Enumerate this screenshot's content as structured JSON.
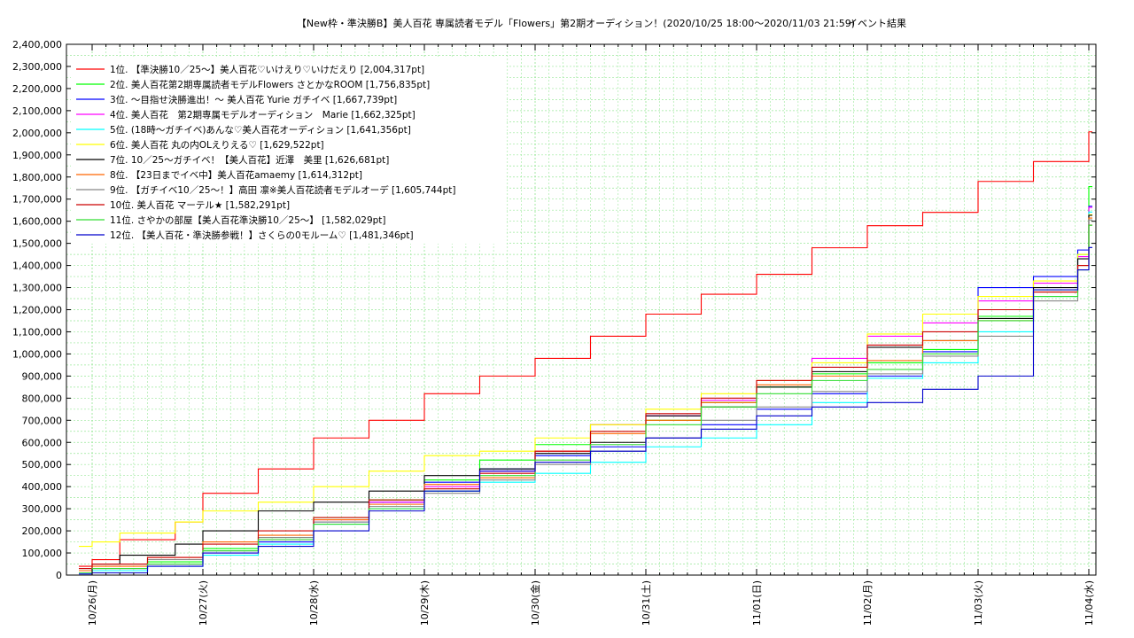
{
  "chart_data": {
    "type": "line",
    "title": "【New枠・準決勝B】美人百花 専属読者モデル「Flowers」第2期オーディション！(2020/10/25 18:00〜2020/11/03 21:59)",
    "subtitle": "イベント結果",
    "xlabel": "",
    "ylabel": "",
    "x_ticks": [
      "10/26(月)",
      "10/27(火)",
      "10/28(水)",
      "10/29(木)",
      "10/30(金)",
      "10/31(土)",
      "11/01(日)",
      "11/02(月)",
      "11/03(火)",
      "11/04(水)"
    ],
    "x_range": [
      0,
      9.25
    ],
    "ylim": [
      0,
      2400000
    ],
    "y_ticks": [
      "0",
      "100,000",
      "200,000",
      "300,000",
      "400,000",
      "500,000",
      "600,000",
      "700,000",
      "800,000",
      "900,000",
      "1,000,000",
      "1,100,000",
      "1,200,000",
      "1,300,000",
      "1,400,000",
      "1,500,000",
      "1,600,000",
      "1,700,000",
      "1,800,000",
      "1,900,000",
      "2,000,000",
      "2,100,000",
      "2,200,000",
      "2,300,000",
      "2,400,000"
    ],
    "grid": true,
    "legend_position": "top-left",
    "series": [
      {
        "name": "1位. 【準決勝10／25〜】美人百花♡いけえり♡いけだえり [2,004,317pt]",
        "color": "#ff0000",
        "step": true,
        "points": [
          [
            -0.12,
            40000
          ],
          [
            0,
            70000
          ],
          [
            0.25,
            160000
          ],
          [
            0.75,
            240000
          ],
          [
            1.0,
            370000
          ],
          [
            1.5,
            480000
          ],
          [
            2.0,
            620000
          ],
          [
            2.5,
            700000
          ],
          [
            3.0,
            820000
          ],
          [
            3.5,
            900000
          ],
          [
            4.0,
            980000
          ],
          [
            4.5,
            1080000
          ],
          [
            5.0,
            1180000
          ],
          [
            5.5,
            1270000
          ],
          [
            6.0,
            1360000
          ],
          [
            6.5,
            1480000
          ],
          [
            7.0,
            1580000
          ],
          [
            7.5,
            1640000
          ],
          [
            8.0,
            1780000
          ],
          [
            8.5,
            1870000
          ],
          [
            9.0,
            2004317
          ]
        ]
      },
      {
        "name": "2位. 美人百花第2期専属読者モデルFlowers さとかなROOM [1,756,835pt]",
        "color": "#00ff00",
        "step": true,
        "points": [
          [
            -0.12,
            20000
          ],
          [
            0,
            30000
          ],
          [
            0.5,
            60000
          ],
          [
            1.0,
            120000
          ],
          [
            1.5,
            170000
          ],
          [
            2.0,
            260000
          ],
          [
            2.5,
            340000
          ],
          [
            3.0,
            430000
          ],
          [
            3.5,
            520000
          ],
          [
            4.0,
            590000
          ],
          [
            4.5,
            680000
          ],
          [
            5.0,
            700000
          ],
          [
            5.5,
            780000
          ],
          [
            6.0,
            850000
          ],
          [
            6.5,
            910000
          ],
          [
            7.0,
            960000
          ],
          [
            7.5,
            1020000
          ],
          [
            8.0,
            1170000
          ],
          [
            8.5,
            1290000
          ],
          [
            8.9,
            1450000
          ],
          [
            9.0,
            1756835
          ]
        ]
      },
      {
        "name": "3位. 〜目指せ決勝進出！〜 美人百花 Yurie ガチイベ [1,667,739pt]",
        "color": "#0000ff",
        "step": true,
        "points": [
          [
            -0.12,
            5000
          ],
          [
            0,
            20000
          ],
          [
            0.5,
            50000
          ],
          [
            1.0,
            110000
          ],
          [
            1.5,
            150000
          ],
          [
            2.0,
            240000
          ],
          [
            2.5,
            330000
          ],
          [
            3.0,
            420000
          ],
          [
            3.5,
            480000
          ],
          [
            4.0,
            540000
          ],
          [
            4.5,
            580000
          ],
          [
            5.0,
            620000
          ],
          [
            5.5,
            680000
          ],
          [
            6.0,
            750000
          ],
          [
            6.5,
            820000
          ],
          [
            7.0,
            900000
          ],
          [
            7.5,
            1010000
          ],
          [
            8.0,
            1300000
          ],
          [
            8.5,
            1350000
          ],
          [
            8.9,
            1470000
          ],
          [
            9.0,
            1667739
          ]
        ]
      },
      {
        "name": "4位. 美人百花　第2期専属モデルオーディション　Marie [1,662,325pt]",
        "color": "#ff00ff",
        "step": true,
        "points": [
          [
            -0.12,
            10000
          ],
          [
            0,
            30000
          ],
          [
            0.5,
            50000
          ],
          [
            1.0,
            100000
          ],
          [
            1.5,
            160000
          ],
          [
            2.0,
            250000
          ],
          [
            2.5,
            330000
          ],
          [
            3.0,
            400000
          ],
          [
            3.5,
            470000
          ],
          [
            4.0,
            560000
          ],
          [
            4.5,
            680000
          ],
          [
            5.0,
            720000
          ],
          [
            5.5,
            790000
          ],
          [
            6.0,
            880000
          ],
          [
            6.5,
            980000
          ],
          [
            7.0,
            1080000
          ],
          [
            7.5,
            1140000
          ],
          [
            8.0,
            1240000
          ],
          [
            8.5,
            1320000
          ],
          [
            8.9,
            1440000
          ],
          [
            9.0,
            1662325
          ]
        ]
      },
      {
        "name": "5位. (18時〜ガチイベ)あんな♡美人百花オーディション [1,641,356pt]",
        "color": "#00ffff",
        "step": true,
        "points": [
          [
            -0.12,
            10000
          ],
          [
            0,
            20000
          ],
          [
            0.5,
            40000
          ],
          [
            1.0,
            90000
          ],
          [
            1.5,
            140000
          ],
          [
            2.0,
            230000
          ],
          [
            2.5,
            300000
          ],
          [
            3.0,
            380000
          ],
          [
            3.5,
            420000
          ],
          [
            4.0,
            460000
          ],
          [
            4.5,
            510000
          ],
          [
            5.0,
            580000
          ],
          [
            5.5,
            620000
          ],
          [
            6.0,
            680000
          ],
          [
            6.5,
            780000
          ],
          [
            7.0,
            890000
          ],
          [
            7.5,
            960000
          ],
          [
            8.0,
            1100000
          ],
          [
            8.5,
            1260000
          ],
          [
            8.9,
            1450000
          ],
          [
            9.0,
            1641356
          ]
        ]
      },
      {
        "name": "6位. 美人百花 丸の内OLえりえる♡ [1,629,522pt]",
        "color": "#ffff00",
        "step": true,
        "points": [
          [
            -0.12,
            130000
          ],
          [
            0,
            150000
          ],
          [
            0.25,
            190000
          ],
          [
            0.75,
            240000
          ],
          [
            1.0,
            290000
          ],
          [
            1.5,
            330000
          ],
          [
            2.0,
            400000
          ],
          [
            2.5,
            470000
          ],
          [
            3.0,
            540000
          ],
          [
            3.5,
            560000
          ],
          [
            4.0,
            620000
          ],
          [
            4.5,
            680000
          ],
          [
            5.0,
            750000
          ],
          [
            5.5,
            820000
          ],
          [
            6.0,
            880000
          ],
          [
            6.5,
            960000
          ],
          [
            7.0,
            1090000
          ],
          [
            7.5,
            1180000
          ],
          [
            8.0,
            1260000
          ],
          [
            8.5,
            1330000
          ],
          [
            8.9,
            1450000
          ],
          [
            9.0,
            1629522
          ]
        ]
      },
      {
        "name": "7位. 10／25〜ガチイベ！【美人百花】近澤　美里 [1,626,681pt]",
        "color": "#000000",
        "step": true,
        "points": [
          [
            -0.12,
            20000
          ],
          [
            0,
            50000
          ],
          [
            0.25,
            90000
          ],
          [
            0.75,
            140000
          ],
          [
            1.0,
            200000
          ],
          [
            1.5,
            290000
          ],
          [
            2.0,
            330000
          ],
          [
            2.5,
            380000
          ],
          [
            3.0,
            450000
          ],
          [
            3.5,
            480000
          ],
          [
            4.0,
            550000
          ],
          [
            4.5,
            600000
          ],
          [
            5.0,
            720000
          ],
          [
            5.5,
            760000
          ],
          [
            6.0,
            850000
          ],
          [
            6.5,
            920000
          ],
          [
            7.0,
            1030000
          ],
          [
            7.5,
            1060000
          ],
          [
            8.0,
            1160000
          ],
          [
            8.5,
            1300000
          ],
          [
            8.9,
            1430000
          ],
          [
            9.0,
            1626681
          ]
        ]
      },
      {
        "name": "8位. 【23日までイベ中】美人百花amaemy [1,614,312pt]",
        "color": "#ff6600",
        "step": true,
        "points": [
          [
            -0.12,
            20000
          ],
          [
            0,
            40000
          ],
          [
            0.5,
            80000
          ],
          [
            1.0,
            150000
          ],
          [
            1.5,
            180000
          ],
          [
            2.0,
            250000
          ],
          [
            2.5,
            320000
          ],
          [
            3.0,
            410000
          ],
          [
            3.5,
            440000
          ],
          [
            4.0,
            560000
          ],
          [
            4.5,
            640000
          ],
          [
            5.0,
            700000
          ],
          [
            5.5,
            780000
          ],
          [
            6.0,
            860000
          ],
          [
            6.5,
            900000
          ],
          [
            7.0,
            970000
          ],
          [
            7.5,
            1060000
          ],
          [
            8.0,
            1150000
          ],
          [
            8.5,
            1280000
          ],
          [
            8.9,
            1400000
          ],
          [
            9.0,
            1614312
          ]
        ]
      },
      {
        "name": "9位. 【ガチイベ10／25〜！】高田 凛※美人百花読者モデルオーデ [1,605,744pt]",
        "color": "#888888",
        "step": true,
        "points": [
          [
            -0.12,
            30000
          ],
          [
            0,
            50000
          ],
          [
            0.5,
            70000
          ],
          [
            1.0,
            110000
          ],
          [
            1.5,
            170000
          ],
          [
            2.0,
            240000
          ],
          [
            2.5,
            310000
          ],
          [
            3.0,
            370000
          ],
          [
            3.5,
            430000
          ],
          [
            4.0,
            500000
          ],
          [
            4.5,
            560000
          ],
          [
            5.0,
            620000
          ],
          [
            5.5,
            700000
          ],
          [
            6.0,
            760000
          ],
          [
            6.5,
            830000
          ],
          [
            7.0,
            910000
          ],
          [
            7.5,
            990000
          ],
          [
            8.0,
            1080000
          ],
          [
            8.5,
            1240000
          ],
          [
            8.9,
            1400000
          ],
          [
            9.0,
            1605744
          ]
        ]
      },
      {
        "name": "10位. 美人百花 マーテル★ [1,582,291pt]",
        "color": "#cc0000",
        "step": true,
        "points": [
          [
            -0.12,
            30000
          ],
          [
            0,
            50000
          ],
          [
            0.5,
            80000
          ],
          [
            1.0,
            140000
          ],
          [
            1.5,
            200000
          ],
          [
            2.0,
            260000
          ],
          [
            2.5,
            340000
          ],
          [
            3.0,
            390000
          ],
          [
            3.5,
            460000
          ],
          [
            4.0,
            560000
          ],
          [
            4.5,
            650000
          ],
          [
            5.0,
            730000
          ],
          [
            5.5,
            800000
          ],
          [
            6.0,
            880000
          ],
          [
            6.5,
            940000
          ],
          [
            7.0,
            1040000
          ],
          [
            7.5,
            1100000
          ],
          [
            8.0,
            1200000
          ],
          [
            8.5,
            1280000
          ],
          [
            8.9,
            1400000
          ],
          [
            9.0,
            1582291
          ]
        ]
      },
      {
        "name": "11位. さやかの部屋【美人百花準決勝10／25〜】 [1,582,029pt]",
        "color": "#33dd33",
        "step": true,
        "points": [
          [
            -0.12,
            10000
          ],
          [
            0,
            30000
          ],
          [
            0.5,
            50000
          ],
          [
            1.0,
            110000
          ],
          [
            1.5,
            160000
          ],
          [
            2.0,
            230000
          ],
          [
            2.5,
            300000
          ],
          [
            3.0,
            380000
          ],
          [
            3.5,
            450000
          ],
          [
            4.0,
            520000
          ],
          [
            4.5,
            590000
          ],
          [
            5.0,
            680000
          ],
          [
            5.5,
            760000
          ],
          [
            6.0,
            820000
          ],
          [
            6.5,
            880000
          ],
          [
            7.0,
            930000
          ],
          [
            7.5,
            1000000
          ],
          [
            8.0,
            1150000
          ],
          [
            8.5,
            1260000
          ],
          [
            8.9,
            1380000
          ],
          [
            9.0,
            1582029
          ]
        ]
      },
      {
        "name": "12位. 【美人百花・準決勝参戦！】さくらの0モルーム♡ [1,481,346pt]",
        "color": "#0000cc",
        "step": true,
        "points": [
          [
            -0.12,
            0
          ],
          [
            0,
            10000
          ],
          [
            0.5,
            40000
          ],
          [
            1.0,
            100000
          ],
          [
            1.5,
            130000
          ],
          [
            2.0,
            200000
          ],
          [
            2.5,
            290000
          ],
          [
            3.0,
            380000
          ],
          [
            3.5,
            470000
          ],
          [
            4.0,
            510000
          ],
          [
            4.5,
            560000
          ],
          [
            5.0,
            620000
          ],
          [
            5.5,
            660000
          ],
          [
            6.0,
            720000
          ],
          [
            6.5,
            760000
          ],
          [
            7.0,
            780000
          ],
          [
            7.5,
            840000
          ],
          [
            8.0,
            900000
          ],
          [
            8.5,
            1290000
          ],
          [
            8.9,
            1380000
          ],
          [
            9.0,
            1481346
          ]
        ]
      }
    ]
  }
}
